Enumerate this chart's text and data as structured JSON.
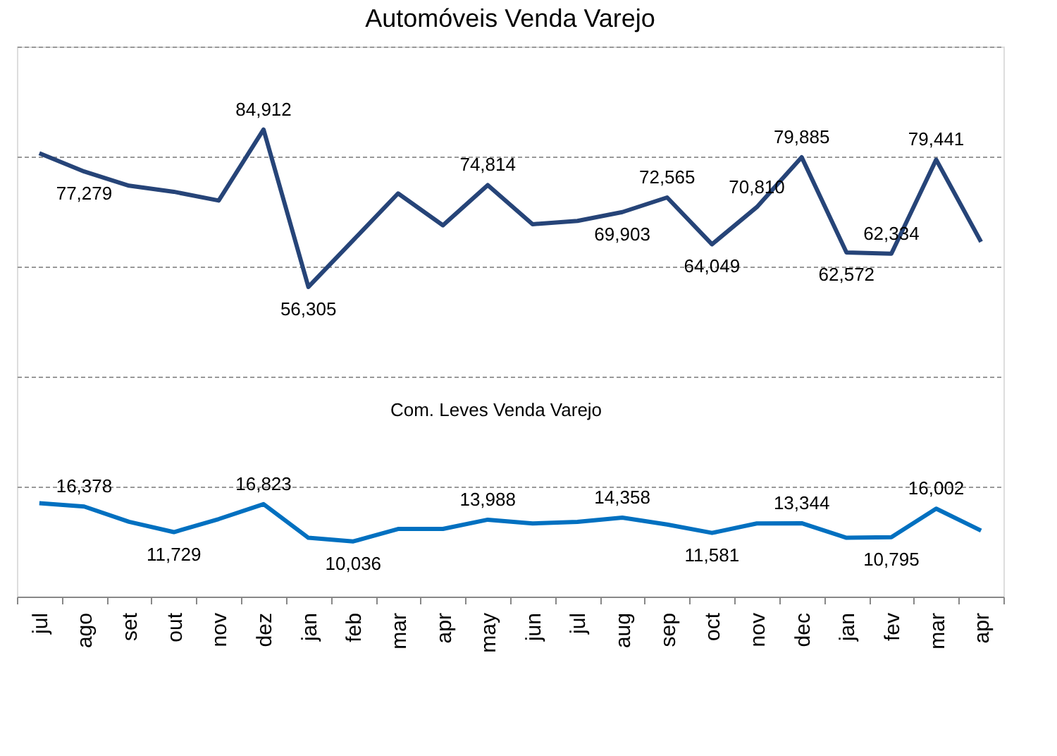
{
  "chart_data": {
    "type": "line",
    "title": "Automóveis Venda Varejo",
    "annotations": [
      "Com. Leves Venda Varejo"
    ],
    "categories": [
      "jul",
      "ago",
      "set",
      "out",
      "nov",
      "dez",
      "jan",
      "feb",
      "mar",
      "apr",
      "may",
      "jun",
      "jul",
      "aug",
      "sep",
      "oct",
      "nov",
      "dec",
      "jan",
      "fev",
      "mar",
      "apr"
    ],
    "series": [
      {
        "color": "#264478",
        "values": [
          80600,
          77279,
          74700,
          73600,
          72000,
          84912,
          56305,
          64800,
          73300,
          67500,
          74814,
          67700,
          68300,
          69903,
          72565,
          64049,
          70810,
          79885,
          62572,
          62334,
          79441,
          64500
        ],
        "value_labels": [
          null,
          "77,279",
          null,
          null,
          null,
          "84,912",
          "56,305",
          null,
          null,
          null,
          "74,814",
          null,
          null,
          "69,903",
          "72,565",
          "64,049",
          "70,810",
          "79,885",
          "62,572",
          "62,334",
          "79,441",
          null
        ]
      },
      {
        "color": "#0070c0",
        "values": [
          17000,
          16378,
          13600,
          11729,
          14100,
          16823,
          10700,
          10036,
          12300,
          12300,
          13988,
          13300,
          13600,
          14358,
          13100,
          11581,
          13300,
          13344,
          10700,
          10795,
          16002,
          12000
        ],
        "value_labels": [
          null,
          "16,378",
          null,
          "11,729",
          null,
          "16,823",
          null,
          "10,036",
          null,
          null,
          "13,988",
          null,
          null,
          "14,358",
          null,
          "11,581",
          null,
          "13,344",
          null,
          "10,795",
          "16,002",
          null
        ]
      }
    ],
    "ylim": [
      0,
      100000
    ],
    "yticks": [
      {
        "value": 0,
        "label": null
      },
      {
        "value": 20000,
        "label": null
      },
      {
        "value": 40000,
        "label": null
      },
      {
        "value": 60000,
        "label": null
      },
      {
        "value": 80000,
        "label": null
      },
      {
        "value": 100000,
        "label": null
      }
    ],
    "grid": "y",
    "tick_labels": "x",
    "line_style": "solid",
    "marker": "none",
    "legend": false
  }
}
